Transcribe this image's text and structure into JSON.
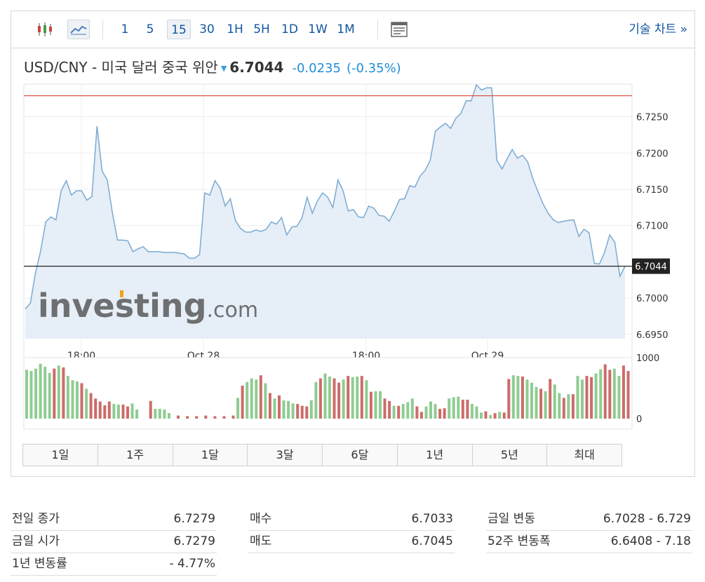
{
  "toolbar": {
    "candles_icon": "candlestick-chart-icon",
    "area_icon": "area-chart-icon",
    "intervals": [
      "1",
      "5",
      "15",
      "30",
      "1H",
      "5H",
      "1D",
      "1W",
      "1M"
    ],
    "active_interval": "15",
    "layout_icon": "chart-layout-icon",
    "tech_chart_label": "기술 차트 »"
  },
  "header": {
    "name": "USD/CNY - 미국 달러 중국 위안",
    "price": "6.7044",
    "change": "-0.0235",
    "change_pct": "(-0.35%)"
  },
  "watermark": {
    "brand": "investing",
    "suffix": ".com"
  },
  "chart_data": [
    {
      "type": "area",
      "y_ticks": [
        "6.7250",
        "6.7200",
        "6.7150",
        "6.7100",
        "6.7000",
        "6.6950"
      ],
      "x_ticks": [
        "18:00",
        "Oct 28",
        "18:00",
        "Oct 29"
      ],
      "ylim": [
        6.6945,
        6.7295
      ],
      "grid": true,
      "current_value": 6.7044,
      "current_label": "6.7044",
      "reference_line": 6.7279,
      "colors": {
        "line": "#7aaad2",
        "fill": "#e3ecf6",
        "reference": "#d9483b",
        "current": "#222222"
      },
      "values": [
        6.6985,
        6.6993,
        6.7035,
        6.7065,
        6.7105,
        6.7112,
        6.7108,
        6.7148,
        6.7162,
        6.7142,
        6.7148,
        6.7148,
        6.7135,
        6.714,
        6.7237,
        6.7175,
        6.7163,
        6.7118,
        6.708,
        6.708,
        6.7079,
        6.7064,
        6.7068,
        6.7071,
        6.7064,
        6.7064,
        6.7064,
        6.7063,
        6.7063,
        6.7063,
        6.7062,
        6.7061,
        6.7055,
        6.7055,
        6.706,
        6.7145,
        6.7142,
        6.7162,
        6.7152,
        6.7127,
        6.7137,
        6.7107,
        6.7096,
        6.7091,
        6.7091,
        6.7094,
        6.7092,
        6.7095,
        6.7105,
        6.7102,
        6.7111,
        6.7087,
        6.7098,
        6.7099,
        6.7111,
        6.7139,
        6.7117,
        6.7134,
        6.7145,
        6.7139,
        6.7125,
        6.7163,
        6.7148,
        6.712,
        6.7122,
        6.7112,
        6.7111,
        6.7127,
        6.7124,
        6.7114,
        6.7113,
        6.7106,
        6.712,
        6.7136,
        6.7137,
        6.7155,
        6.7153,
        6.7168,
        6.7176,
        6.719,
        6.723,
        6.7236,
        6.7241,
        6.7234,
        6.7248,
        6.7255,
        6.7272,
        6.7272,
        6.7294,
        6.7287,
        6.729,
        6.729,
        6.719,
        6.7178,
        6.7192,
        6.7205,
        6.7193,
        6.7197,
        6.7188,
        6.7165,
        6.7147,
        6.713,
        6.7117,
        6.7108,
        6.7104,
        6.7106,
        6.7107,
        6.7108,
        6.7085,
        6.7095,
        6.709,
        6.7048,
        6.7047,
        6.7063,
        6.7087,
        6.7077,
        6.703,
        6.7044
      ]
    },
    {
      "type": "bar",
      "y_ticks": [
        "1000",
        "0"
      ],
      "ylim": [
        0,
        1000
      ],
      "colors": {
        "up": "#8fcc92",
        "down": "#cc6c69"
      },
      "values": [
        800,
        780,
        820,
        900,
        850,
        750,
        820,
        870,
        840,
        700,
        630,
        610,
        580,
        490,
        420,
        330,
        280,
        220,
        280,
        240,
        230,
        230,
        200,
        250,
        150,
        0,
        0,
        290,
        160,
        160,
        150,
        90,
        0,
        50,
        0,
        40,
        0,
        40,
        0,
        50,
        0,
        40,
        0,
        40,
        0,
        50,
        340,
        540,
        600,
        660,
        640,
        710,
        580,
        420,
        330,
        380,
        300,
        290,
        250,
        240,
        210,
        200,
        300,
        600,
        660,
        740,
        690,
        660,
        590,
        640,
        700,
        680,
        690,
        700,
        630,
        440,
        450,
        450,
        330,
        290,
        210,
        210,
        240,
        270,
        330,
        200,
        110,
        200,
        280,
        240,
        160,
        170,
        330,
        350,
        360,
        310,
        310,
        240,
        200,
        100,
        120,
        60,
        90,
        110,
        100,
        650,
        710,
        700,
        690,
        640,
        590,
        520,
        490,
        450,
        650,
        560,
        420,
        340,
        400,
        400,
        700,
        640,
        700,
        680,
        740,
        810,
        890,
        800,
        820,
        700,
        870,
        780
      ],
      "directions": [
        "u",
        "u",
        "u",
        "u",
        "u",
        "u",
        "d",
        "u",
        "d",
        "u",
        "u",
        "u",
        "d",
        "u",
        "d",
        "d",
        "d",
        "d",
        "d",
        "u",
        "u",
        "d",
        "d",
        "u",
        "u",
        "u",
        "u",
        "d",
        "u",
        "u",
        "u",
        "u",
        "u",
        "d",
        "u",
        "d",
        "u",
        "d",
        "u",
        "d",
        "u",
        "d",
        "u",
        "d",
        "u",
        "d",
        "u",
        "d",
        "u",
        "u",
        "u",
        "d",
        "u",
        "d",
        "u",
        "d",
        "u",
        "u",
        "u",
        "d",
        "d",
        "d",
        "u",
        "u",
        "d",
        "u",
        "u",
        "d",
        "d",
        "u",
        "d",
        "u",
        "u",
        "d",
        "u",
        "d",
        "u",
        "u",
        "d",
        "d",
        "u",
        "d",
        "u",
        "u",
        "u",
        "d",
        "d",
        "u",
        "u",
        "u",
        "d",
        "d",
        "u",
        "u",
        "u",
        "d",
        "d",
        "u",
        "u",
        "u",
        "d",
        "u",
        "d",
        "u",
        "d",
        "d",
        "u",
        "u",
        "d",
        "u",
        "u",
        "u",
        "d",
        "u",
        "d",
        "u",
        "u",
        "d",
        "u",
        "d",
        "u",
        "u",
        "d",
        "d",
        "u",
        "u",
        "d",
        "d",
        "u",
        "u"
      ]
    }
  ],
  "ranges": [
    "1일",
    "1주",
    "1달",
    "3달",
    "6달",
    "1년",
    "5년",
    "최대"
  ],
  "stats": {
    "col1": [
      {
        "label": "전일 종가",
        "value": "6.7279"
      },
      {
        "label": "금일 시가",
        "value": "6.7279"
      },
      {
        "label": "1년 변동률",
        "value": "- 4.77%"
      }
    ],
    "col2": [
      {
        "label": "매수",
        "value": "6.7033"
      },
      {
        "label": "매도",
        "value": "6.7045"
      }
    ],
    "col3": [
      {
        "label": "금일 변동",
        "value": "6.7028 - 6.729"
      },
      {
        "label": "52주 변동폭",
        "value": "6.6408 - 7.18"
      }
    ]
  }
}
